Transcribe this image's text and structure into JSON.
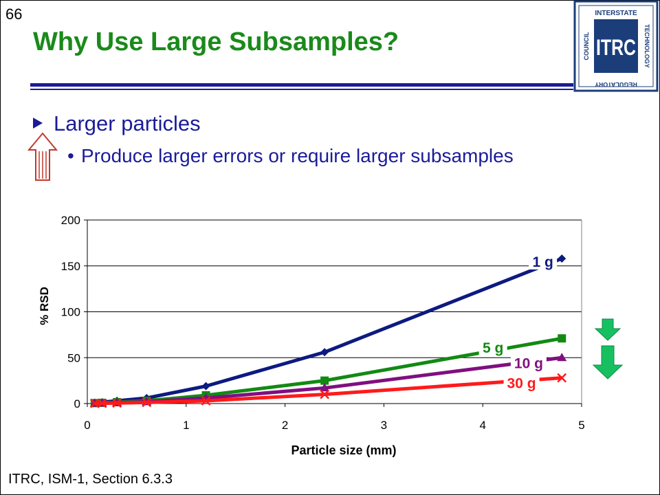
{
  "slide": {
    "number": "66",
    "title": "Why Use Large Subsamples?",
    "bullet_main": "Larger particles",
    "bullet_sub": "Produce larger errors or require larger subsamples",
    "footer": "ITRC, ISM-1, Section 6.3.3"
  },
  "logo": {
    "center": "ITRC",
    "top": "INTERSTATE",
    "right": "TECHNOLOGY",
    "bottom": "REGULATORY",
    "left": "COUNCIL",
    "color": "#1b3d7a"
  },
  "chart_data": {
    "type": "line",
    "title": "",
    "xlabel": "Particle size (mm)",
    "ylabel": "% RSD",
    "xlim": [
      0,
      5
    ],
    "ylim": [
      0,
      200
    ],
    "xticks": [
      "0",
      "1",
      "2",
      "3",
      "4",
      "5"
    ],
    "yticks": [
      "0",
      "50",
      "100",
      "150",
      "200"
    ],
    "grid": "horizontal",
    "x": [
      0.075,
      0.15,
      0.3,
      0.6,
      1.2,
      2.4,
      4.8
    ],
    "series": [
      {
        "name": "1 g",
        "color": "#0d1a80",
        "marker": "diamond",
        "values": [
          1,
          1.5,
          3,
          6,
          19,
          56,
          158
        ]
      },
      {
        "name": "5 g",
        "color": "#128a12",
        "marker": "square",
        "values": [
          0.5,
          0.8,
          1.5,
          3,
          9,
          25,
          71
        ]
      },
      {
        "name": "10 g",
        "color": "#800f80",
        "marker": "triangle",
        "values": [
          0.3,
          0.5,
          1,
          2,
          6,
          17,
          50
        ]
      },
      {
        "name": "30 g",
        "color": "#ff1a1a",
        "marker": "x",
        "values": [
          0.2,
          0.3,
          0.6,
          1.2,
          3,
          10,
          28
        ]
      }
    ]
  },
  "colors": {
    "title": "#1a8a1a",
    "text": "#1b1b99",
    "up_arrow": "#c0392b",
    "down_arrow": "#16a34a"
  }
}
